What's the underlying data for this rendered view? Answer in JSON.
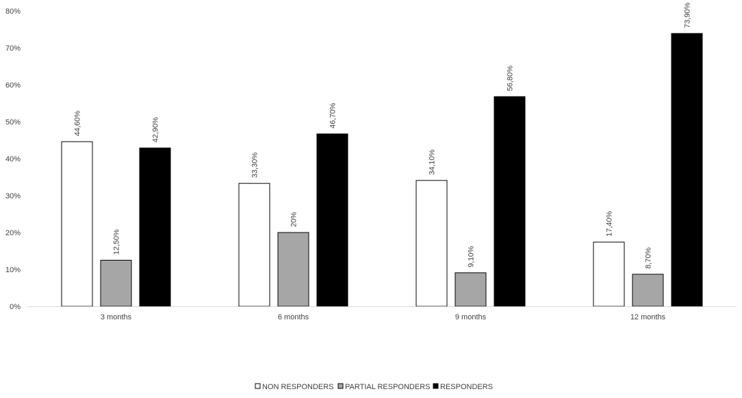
{
  "chart_data": {
    "type": "bar",
    "categories": [
      "3 months",
      "6 months",
      "9 months",
      "12 months"
    ],
    "series": [
      {
        "name": "NON RESPONDERS",
        "color": "#ffffff",
        "values": [
          44.6,
          33.3,
          34.1,
          17.4
        ],
        "labels": [
          "44,60%",
          "33,30%",
          "34,10%",
          "17,40%"
        ]
      },
      {
        "name": "PARTIAL RESPONDERS",
        "color": "#a6a6a6",
        "values": [
          12.5,
          20,
          9.1,
          8.7
        ],
        "labels": [
          "12,50%",
          "20%",
          "9,10%",
          "8,70%"
        ]
      },
      {
        "name": "RESPONDERS",
        "color": "#000000",
        "values": [
          42.9,
          46.7,
          56.8,
          73.9
        ],
        "labels": [
          "42,90%",
          "46,70%",
          "56,80%",
          "73,90%"
        ]
      }
    ],
    "ylim": [
      0,
      80
    ],
    "yticks": [
      "0%",
      "10%",
      "20%",
      "30%",
      "40%",
      "50%",
      "60%",
      "70%",
      "80%"
    ],
    "grid": false,
    "legend_position": "bottom",
    "title": "",
    "xlabel": "",
    "ylabel": ""
  }
}
